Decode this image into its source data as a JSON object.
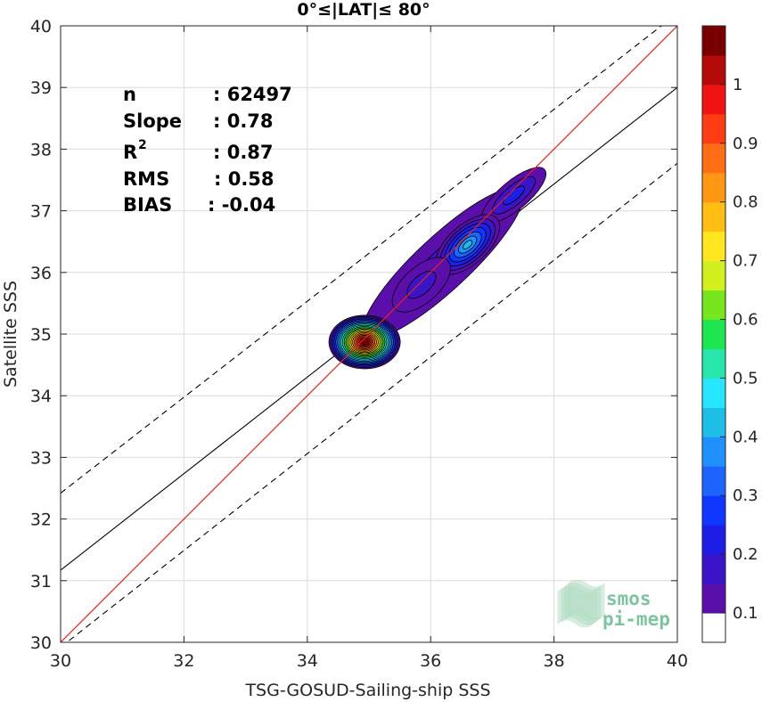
{
  "chart_data": {
    "type": "contour",
    "title": "0°≤|LAT|≤ 80°",
    "xlabel": "TSG-GOSUD-Sailing-ship SSS",
    "ylabel": "Satellite SSS",
    "xlim": [
      30,
      40
    ],
    "ylim": [
      30,
      40
    ],
    "xticks": [
      "30",
      "32",
      "34",
      "36",
      "38",
      "40"
    ],
    "yticks": [
      "30",
      "31",
      "32",
      "33",
      "34",
      "35",
      "36",
      "37",
      "38",
      "39",
      "40"
    ],
    "stats": [
      {
        "label": "n",
        "value": ": 62497"
      },
      {
        "label": "Slope",
        "value": ": 0.78"
      },
      {
        "label": "R",
        "sup": "2",
        "value": ": 0.87"
      },
      {
        "label": "RMS",
        "value": ": 0.58"
      },
      {
        "label": "BIAS",
        "value": ": -0.04"
      }
    ],
    "lines": {
      "identity": {
        "slope": 1.0,
        "intercept": 0.0,
        "color": "#e8221c"
      },
      "regression": {
        "x": [
          30,
          40
        ],
        "y": [
          31.17,
          39.0
        ],
        "color": "#000000"
      },
      "upper_dashed": {
        "x": [
          30,
          40
        ],
        "y": [
          32.42,
          40.2
        ]
      },
      "lower_dashed": {
        "x": [
          30,
          40
        ],
        "y": [
          29.92,
          37.77
        ]
      }
    },
    "density_peaks": [
      {
        "x": 34.9,
        "y": 34.9,
        "value": 1.0
      },
      {
        "x": 36.6,
        "y": 36.45,
        "value": 0.4
      },
      {
        "x": 37.4,
        "y": 37.3,
        "value": 0.3
      },
      {
        "x": 36.0,
        "y": 35.85,
        "value": 0.2
      }
    ],
    "colorbar": {
      "ticks": [
        "0.1",
        "0.2",
        "0.3",
        "0.4",
        "0.5",
        "0.6",
        "0.7",
        "0.8",
        "0.9",
        "1"
      ],
      "levels": [
        "#ffffff",
        "#5a0faa",
        "#3c14c8",
        "#1e1ee6",
        "#0f37ff",
        "#1e64ff",
        "#1e91ff",
        "#1ebee6",
        "#28e6ff",
        "#28e6aa",
        "#1ee650",
        "#78e61e",
        "#d2f01e",
        "#ffe61e",
        "#ffbe14",
        "#ff9614",
        "#ff6e14",
        "#ff3c14",
        "#f01414",
        "#b40a0a",
        "#780000"
      ]
    }
  },
  "watermark": {
    "line1": "smos",
    "line2": "pi-mep"
  }
}
